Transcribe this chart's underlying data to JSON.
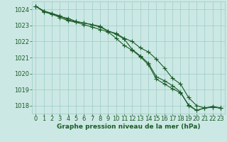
{
  "x": [
    0,
    1,
    2,
    3,
    4,
    5,
    6,
    7,
    8,
    9,
    10,
    11,
    12,
    13,
    14,
    15,
    16,
    17,
    18,
    19,
    20,
    21,
    22,
    23
  ],
  "line1": [
    1024.2,
    1023.9,
    1023.75,
    1023.55,
    1023.45,
    1023.25,
    1023.15,
    1023.05,
    1022.9,
    1022.65,
    1022.45,
    1022.15,
    1021.5,
    1021.1,
    1020.65,
    1019.8,
    1019.55,
    1019.25,
    1018.85,
    1018.0,
    1017.7,
    1017.85,
    1017.9,
    1017.85
  ],
  "line2": [
    1024.2,
    1023.85,
    1023.7,
    1023.5,
    1023.3,
    1023.2,
    1023.05,
    1022.9,
    1022.75,
    1022.6,
    1022.2,
    1021.75,
    1021.45,
    1021.05,
    1020.55,
    1019.65,
    1019.35,
    1019.05,
    1018.8,
    1018.05,
    1017.7,
    1017.85,
    1017.9,
    1017.85
  ],
  "line3": [
    1024.2,
    1023.9,
    1023.75,
    1023.6,
    1023.35,
    1023.25,
    1023.15,
    1023.05,
    1022.95,
    1022.65,
    1022.5,
    1022.2,
    1022.0,
    1021.6,
    1021.35,
    1020.9,
    1020.35,
    1019.7,
    1019.35,
    1018.5,
    1018.0,
    1017.85,
    1017.95,
    1017.85
  ],
  "line_color": "#1a5c28",
  "bg_color": "#cce8e4",
  "grid_color": "#99ccc6",
  "title": "Graphe pression niveau de la mer (hPa)",
  "ylim": [
    1017.5,
    1024.5
  ],
  "yticks": [
    1018,
    1019,
    1020,
    1021,
    1022,
    1023,
    1024
  ],
  "tick_fontsize": 6,
  "title_fontsize": 6.5,
  "marker": "+",
  "marker_size": 4,
  "linewidth": 0.8
}
